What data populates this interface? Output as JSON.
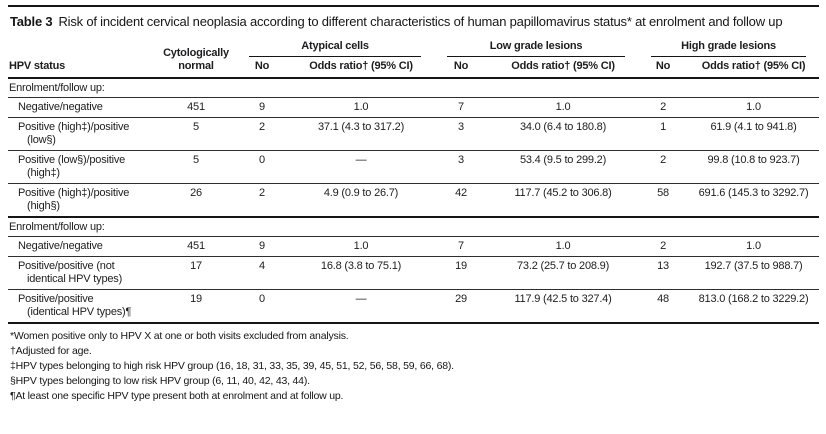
{
  "colors": {
    "rule": "#151515",
    "text": "#1d1d1f",
    "background": "#ffffff"
  },
  "title": {
    "label": "Table 3",
    "text": "Risk of incident cervical neoplasia according to different characteristics of human papillomavirus status* at enrolment and follow up"
  },
  "table": {
    "col1_header": "HPV status",
    "col2_header": [
      "Cytologically",
      "normal"
    ],
    "groups": [
      {
        "label": "Atypical cells",
        "no": "No",
        "or": "Odds ratio† (95% CI)"
      },
      {
        "label": "Low grade lesions",
        "no": "No",
        "or": "Odds ratio† (95% CI)"
      },
      {
        "label": "High grade lesions",
        "no": "No",
        "or": "Odds ratio† (95% CI)"
      }
    ],
    "sections": [
      {
        "label": "Enrolment/follow up:",
        "rows": [
          {
            "label_lines": [
              "Negative/negative"
            ],
            "values": [
              "451",
              "9",
              "1.0",
              "7",
              "1.0",
              "2",
              "1.0"
            ]
          },
          {
            "label_lines": [
              "Positive (high‡)/positive",
              "(low§)"
            ],
            "values": [
              "5",
              "2",
              "37.1 (4.3 to 317.2)",
              "3",
              "34.0 (6.4 to 180.8)",
              "1",
              "61.9 (4.1 to 941.8)"
            ]
          },
          {
            "label_lines": [
              "Positive (low§)/positive",
              "(high‡)"
            ],
            "values": [
              "5",
              "0",
              "—",
              "3",
              "53.4 (9.5 to 299.2)",
              "2",
              "99.8 (10.8 to 923.7)"
            ]
          },
          {
            "label_lines": [
              "Positive (high‡)/positive",
              "(high§)"
            ],
            "values": [
              "26",
              "2",
              "4.9 (0.9 to 26.7)",
              "42",
              "117.7 (45.2 to 306.8)",
              "58",
              "691.6 (145.3 to 3292.7)"
            ]
          }
        ]
      },
      {
        "label": "Enrolment/follow up:",
        "rows": [
          {
            "label_lines": [
              "Negative/negative"
            ],
            "values": [
              "451",
              "9",
              "1.0",
              "7",
              "1.0",
              "2",
              "1.0"
            ]
          },
          {
            "label_lines": [
              "Positive/positive (not",
              "identical HPV types)"
            ],
            "values": [
              "17",
              "4",
              "16.8 (3.8 to 75.1)",
              "19",
              "73.2 (25.7 to 208.9)",
              "13",
              "192.7 (37.5 to 988.7)"
            ]
          },
          {
            "label_lines": [
              "Positive/positive",
              "(identical HPV types)¶"
            ],
            "values": [
              "19",
              "0",
              "—",
              "29",
              "117.9 (42.5 to 327.4)",
              "48",
              "813.0 (168.2 to 3229.2)"
            ]
          }
        ]
      }
    ]
  },
  "footnotes": [
    "*Women positive only to HPV X at one or both visits excluded from analysis.",
    "†Adjusted for age.",
    "‡HPV types belonging to high risk HPV group (16, 18, 31, 33, 35, 39, 45, 51, 52, 56, 58, 59, 66, 68).",
    "§HPV types belonging to low risk HPV group (6, 11, 40, 42, 43, 44).",
    "¶At least one specific HPV type present both at enrolment and at follow up."
  ]
}
